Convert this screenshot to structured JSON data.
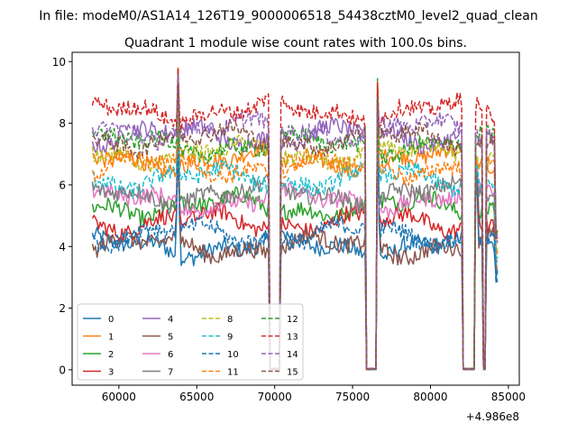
{
  "chart_data": {
    "type": "line",
    "suptitle": "In file: modeM0/AS1A14_126T19_9000006518_54438cztM0_level2_quad_clean",
    "title": "Quadrant 1 module wise count rates with 100.0s bins.",
    "xlabel": "",
    "ylabel": "",
    "x_offset_label": "+4.986e8",
    "xlim": [
      57000,
      85700
    ],
    "ylim": [
      -0.5,
      10.3
    ],
    "x_ticks": [
      60000,
      65000,
      70000,
      75000,
      80000,
      85000
    ],
    "x_tick_labels": [
      "60000",
      "65000",
      "70000",
      "75000",
      "80000",
      "85000"
    ],
    "y_ticks": [
      0,
      2,
      4,
      6,
      8,
      10
    ],
    "y_tick_labels": [
      "0",
      "2",
      "4",
      "6",
      "8",
      "10"
    ],
    "x_range": [
      58300,
      84300
    ],
    "bin_seconds": 100,
    "gaps": [
      [
        69700,
        70300
      ],
      [
        75900,
        76500
      ],
      [
        82100,
        82800
      ],
      [
        83350,
        83500
      ]
    ],
    "spikes": [
      [
        63800,
        9.9
      ],
      [
        70100,
        9.3
      ],
      [
        76600,
        9.5
      ],
      [
        82950,
        9.2
      ]
    ],
    "legend": {
      "location": "lower left",
      "ncol": 4
    },
    "series": [
      {
        "name": "0",
        "color": "#1f77b4",
        "dashed": false,
        "base": 4.0
      },
      {
        "name": "1",
        "color": "#ff7f0e",
        "dashed": false,
        "base": 6.8
      },
      {
        "name": "2",
        "color": "#2ca02c",
        "dashed": false,
        "base": 5.3
      },
      {
        "name": "3",
        "color": "#d62728",
        "dashed": false,
        "base": 4.8
      },
      {
        "name": "4",
        "color": "#9467bd",
        "dashed": false,
        "base": 7.6
      },
      {
        "name": "5",
        "color": "#8c564b",
        "dashed": false,
        "base": 4.0
      },
      {
        "name": "6",
        "color": "#e377c2",
        "dashed": false,
        "base": 5.5
      },
      {
        "name": "7",
        "color": "#7f7f7f",
        "dashed": false,
        "base": 5.7
      },
      {
        "name": "8",
        "color": "#bcbd22",
        "dashed": true,
        "base": 7.0
      },
      {
        "name": "9",
        "color": "#17becf",
        "dashed": true,
        "base": 6.2
      },
      {
        "name": "10",
        "color": "#1f77b4",
        "dashed": true,
        "base": 4.4
      },
      {
        "name": "11",
        "color": "#ff7f0e",
        "dashed": true,
        "base": 6.6
      },
      {
        "name": "12",
        "color": "#2ca02c",
        "dashed": true,
        "base": 7.3
      },
      {
        "name": "13",
        "color": "#d62728",
        "dashed": true,
        "base": 8.4
      },
      {
        "name": "14",
        "color": "#9467bd",
        "dashed": true,
        "base": 7.8
      },
      {
        "name": "15",
        "color": "#8c564b",
        "dashed": true,
        "base": 7.5
      }
    ]
  }
}
